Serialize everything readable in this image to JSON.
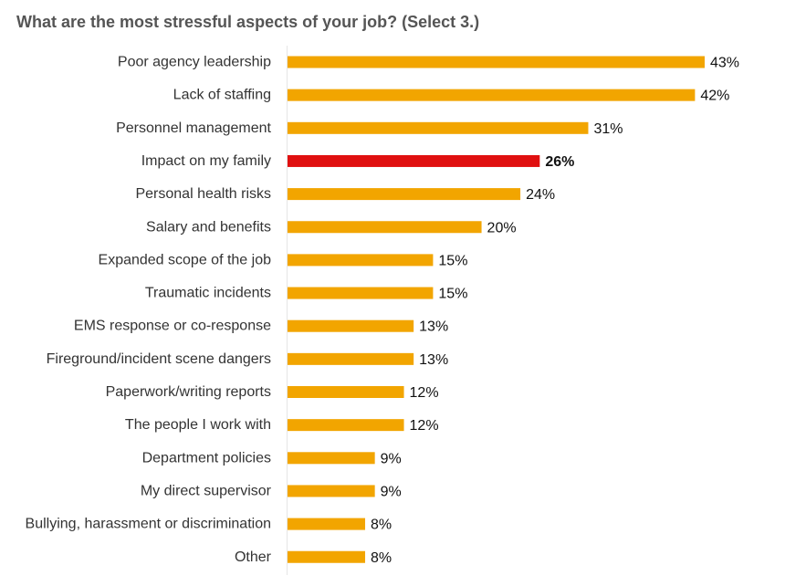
{
  "chart_data": {
    "type": "bar",
    "orientation": "horizontal",
    "title": "What are the most stressful aspects of your job? (Select 3.)",
    "xlabel": "",
    "ylabel": "",
    "xlim": [
      0,
      43
    ],
    "grid": false,
    "value_suffix": "%",
    "categories": [
      "Poor agency leadership",
      "Lack of staffing",
      "Personnel management",
      "Impact on my family",
      "Personal health risks",
      "Salary and benefits",
      "Expanded scope of the job",
      "Traumatic incidents",
      "EMS response or co-response",
      "Fireground/incident scene dangers",
      "Paperwork/writing reports",
      "The people I work with",
      "Department policies",
      "My direct supervisor",
      "Bullying, harassment or discrimination",
      "Other"
    ],
    "value_labels": [
      "43%",
      "42%",
      "31%",
      "26%",
      "24%",
      "20%",
      "15%",
      "15%",
      "13%",
      "13%",
      "12%",
      "12%",
      "9%",
      "9%",
      "8%",
      "8%"
    ],
    "series": [
      {
        "values": [
          43,
          42,
          31,
          26,
          24,
          20,
          15,
          15,
          13,
          13,
          12,
          12,
          9,
          9,
          8,
          8
        ]
      }
    ],
    "highlight_index": 3,
    "colors": {
      "bar": "#f2a500",
      "highlight": "#e01010",
      "axis": "#e6e6e6",
      "title": "#555555",
      "label": "#333333"
    }
  }
}
